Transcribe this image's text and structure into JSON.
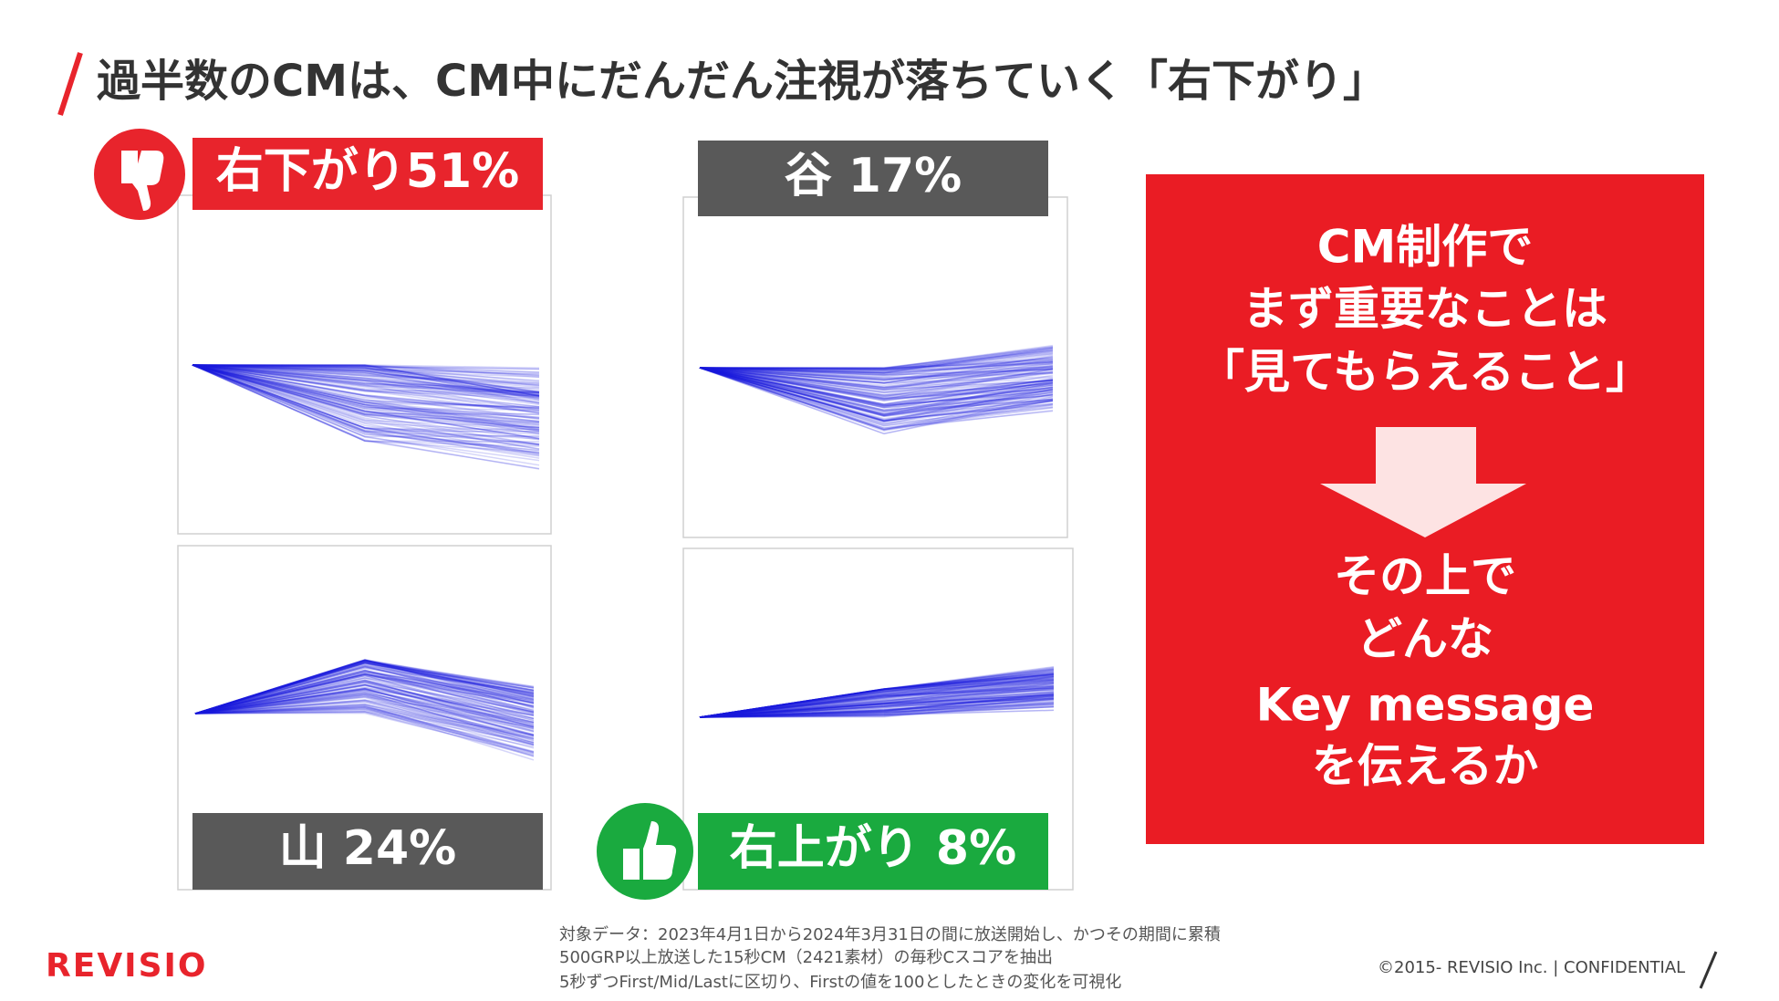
{
  "header": {
    "title": "過半数のCMは、CM中にだんだん注視が落ちていく「右下がり」"
  },
  "panels": [
    {
      "label": "右下がり51%"
    },
    {
      "label": "谷 17%"
    },
    {
      "label": "山 24%"
    },
    {
      "label": "右上がり 8%"
    }
  ],
  "callout": {
    "lines": [
      "CM制作で",
      "まず重要なことは",
      "「見てもらえること」",
      "その上で",
      "どんな",
      "Key message",
      "を伝えるか"
    ]
  },
  "footnote": {
    "lines": [
      "対象データ：2023年4月1日から2024年3月31日の間に放送開始し、かつその期間に累積",
      "500GRP以上放送した15秒CM（2421素材）の毎秒Cスコアを抽出",
      "5秒ずつFirst/Mid/Lastに区切り、Firstの値を100としたときの変化を可視化"
    ]
  },
  "footer": {
    "logo": "REVISIO",
    "copyright": "©2015- REVISIO Inc. | CONFIDENTIAL"
  }
}
